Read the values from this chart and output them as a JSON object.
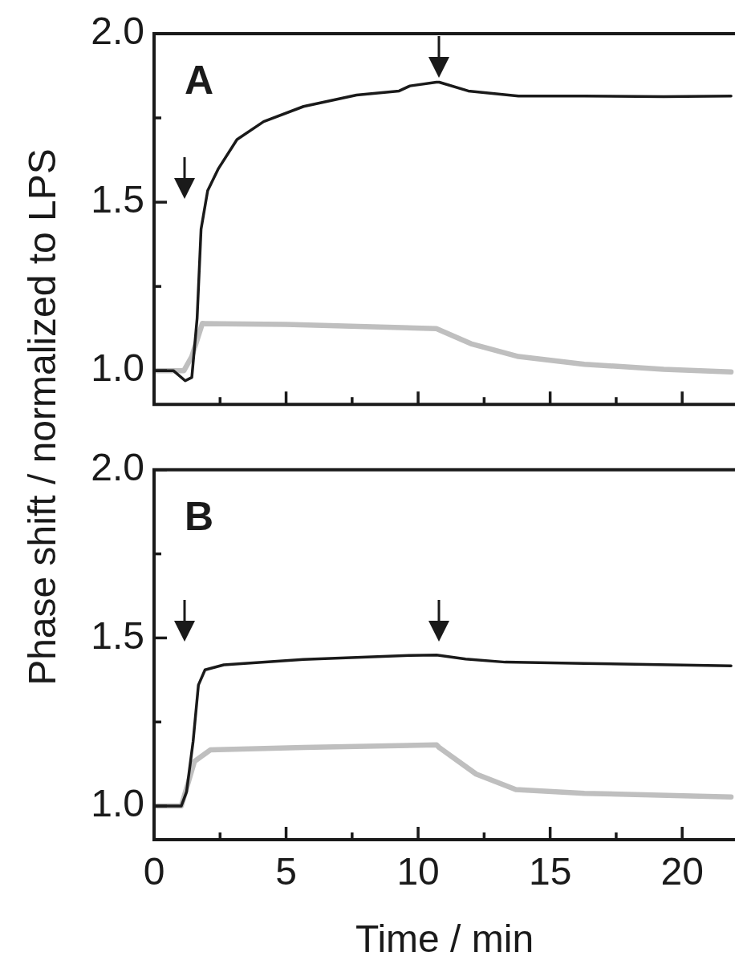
{
  "chart_data": [
    {
      "type": "line",
      "title": "A",
      "ylabel": "Phase shift / normalized to LPS",
      "xlim": [
        0,
        22
      ],
      "ylim": [
        0.9,
        2.0
      ],
      "xticks": [
        0,
        {
          "value": 2.5,
          "label": null
        },
        5,
        {
          "value": 7.5,
          "label": null
        },
        10,
        {
          "value": 12.5,
          "label": null
        },
        15,
        {
          "value": 17.5,
          "label": null
        },
        20
      ],
      "yticks": [
        {
          "value": 1.0,
          "label": "1.0"
        },
        {
          "value": 1.25,
          "label": null
        },
        {
          "value": 1.5,
          "label": "1.5"
        },
        {
          "value": 1.75,
          "label": null
        },
        {
          "value": 2.0,
          "label": "2.0"
        }
      ],
      "tick_labels": "y",
      "grid": false,
      "legend": false,
      "marker": "none",
      "line_style": "solid",
      "series": [
        {
          "color": "#1a1a1a",
          "x": [
            0,
            0.73,
            1.18,
            1.43,
            1.63,
            1.78,
            2.03,
            2.44,
            3.14,
            4.15,
            5.66,
            7.67,
            9.28,
            9.69,
            10.69,
            10.8,
            11.9,
            13.8,
            16.3,
            19.3,
            21.85
          ],
          "values": [
            1.0,
            1.0,
            0.97,
            0.98,
            1.155,
            1.42,
            1.534,
            1.6,
            1.686,
            1.739,
            1.784,
            1.818,
            1.83,
            1.845,
            1.856,
            1.856,
            1.83,
            1.815,
            1.815,
            1.813,
            1.815
          ]
        },
        {
          "color": "#bfbfbf",
          "x": [
            0,
            1.13,
            1.43,
            1.83,
            5.0,
            10.69,
            12.0,
            13.8,
            16.3,
            19.3,
            21.85
          ],
          "values": [
            1.0,
            1.0,
            1.042,
            1.14,
            1.137,
            1.125,
            1.08,
            1.042,
            1.019,
            1.004,
            0.996
          ]
        }
      ]
    },
    {
      "type": "line",
      "title": "B",
      "xlabel": "Time / min",
      "xlim": [
        0,
        22
      ],
      "ylim": [
        0.9,
        2.0
      ],
      "xticks": [
        0,
        {
          "value": 2.5,
          "label": null
        },
        5,
        {
          "value": 7.5,
          "label": null
        },
        10,
        {
          "value": 12.5,
          "label": null
        },
        15,
        {
          "value": 17.5,
          "label": null
        },
        20
      ],
      "yticks": [
        {
          "value": 1.0,
          "label": "1.0"
        },
        {
          "value": 1.25,
          "label": null
        },
        {
          "value": 1.5,
          "label": "1.5"
        },
        {
          "value": 1.75,
          "label": null
        },
        {
          "value": 2.0,
          "label": "2.0"
        }
      ],
      "grid": false,
      "legend": false,
      "marker": "none",
      "line_style": "solid",
      "series": [
        {
          "color": "#1a1a1a",
          "x": [
            0,
            1.03,
            1.23,
            1.48,
            1.68,
            1.93,
            2.64,
            5.66,
            9.69,
            10.7,
            11.8,
            13.3,
            16.3,
            21.85
          ],
          "values": [
            1.0,
            1.0,
            1.042,
            1.193,
            1.36,
            1.405,
            1.42,
            1.436,
            1.448,
            1.449,
            1.437,
            1.428,
            1.424,
            1.417
          ]
        },
        {
          "color": "#bfbfbf",
          "x": [
            0,
            1.03,
            1.53,
            2.13,
            5.66,
            10.7,
            10.8,
            12.2,
            13.7,
            16.3,
            21.85
          ],
          "values": [
            1.0,
            1.0,
            1.133,
            1.167,
            1.174,
            1.182,
            1.174,
            1.095,
            1.049,
            1.038,
            1.027
          ]
        }
      ]
    }
  ]
}
